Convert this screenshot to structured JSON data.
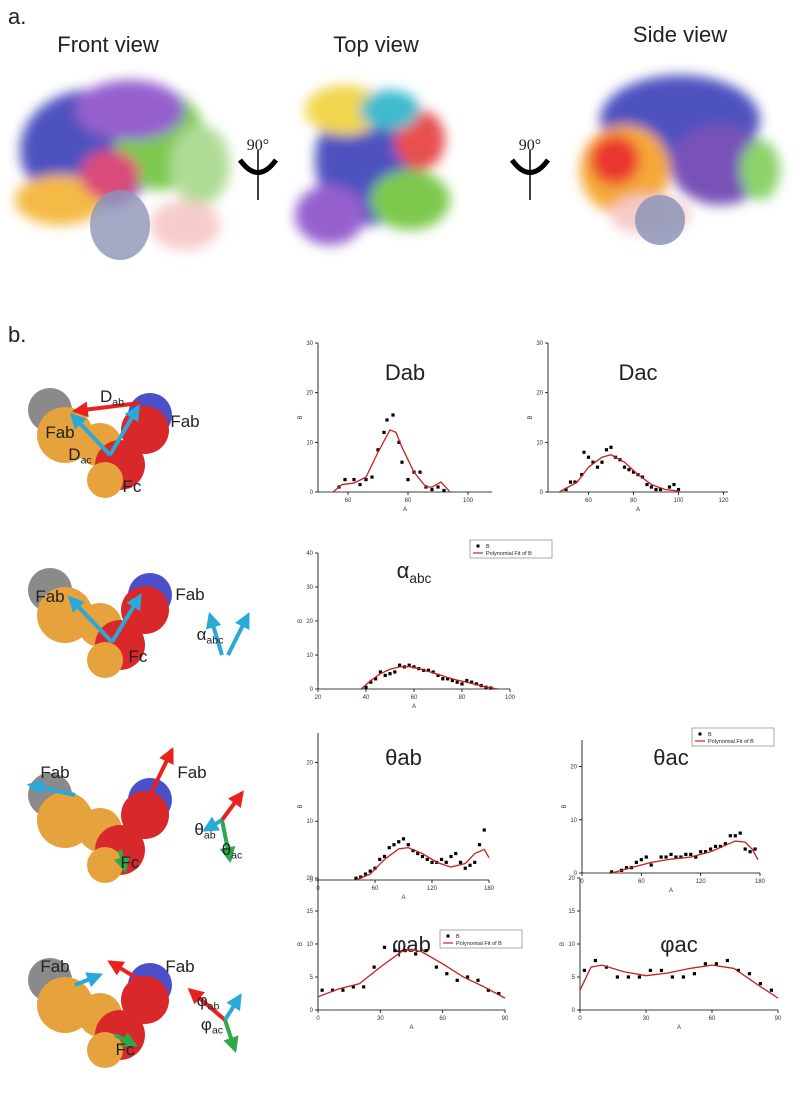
{
  "panel_labels": [
    "a.",
    "b."
  ],
  "views": [
    "Front view",
    "Top view",
    "Side view"
  ],
  "rotation": [
    "90°",
    "90°"
  ],
  "diagrams": [
    {
      "labels": [
        {
          "text": "Fab"
        },
        {
          "text": "Fab"
        },
        {
          "text": "D",
          "sub": "ab"
        },
        {
          "text": "D",
          "sub": "ac"
        },
        {
          "text": "Fc"
        }
      ]
    },
    {
      "labels": [
        {
          "text": "Fab"
        },
        {
          "text": "Fab"
        },
        {
          "text": "Fc"
        },
        {
          "text": "α",
          "sub": "abc"
        }
      ]
    },
    {
      "labels": [
        {
          "text": "Fab"
        },
        {
          "text": "Fab"
        },
        {
          "text": "Fc"
        },
        {
          "text": "θ",
          "sub": "ab"
        },
        {
          "text": "θ",
          "sub": "ac"
        }
      ]
    },
    {
      "labels": [
        {
          "text": "Fab"
        },
        {
          "text": "Fab"
        },
        {
          "text": "Fc"
        },
        {
          "text": "φ",
          "sub": "ab"
        },
        {
          "text": "φ",
          "sub": "ac"
        }
      ]
    }
  ],
  "chart_data": [
    {
      "type": "scatter",
      "title": "Dab",
      "x_label": "A",
      "y_label": "B",
      "xlim": [
        50,
        108
      ],
      "xticks": [
        60,
        80,
        100
      ],
      "ylim": [
        0,
        30
      ],
      "yticks": [
        0,
        10,
        20,
        30
      ],
      "legend": false,
      "series": [
        {
          "color": "#000000",
          "x": [
            57,
            59,
            62,
            64,
            66,
            68,
            70,
            72,
            73,
            75,
            77,
            78,
            80,
            82,
            84,
            86,
            88,
            90,
            92
          ],
          "values": [
            1,
            2.5,
            2.5,
            1.5,
            2.5,
            3,
            8.5,
            12,
            14.5,
            15.5,
            10,
            6,
            2.5,
            4,
            4,
            1,
            0.5,
            1,
            0.3
          ]
        },
        {
          "type": "line",
          "color": "#c8201e",
          "x": [
            55,
            58,
            62,
            66,
            70,
            74,
            76,
            78,
            82,
            86,
            88,
            91,
            94
          ],
          "values": [
            0,
            1.5,
            1.8,
            3,
            8,
            12.5,
            12,
            9,
            4,
            1,
            1,
            2,
            0
          ]
        }
      ]
    },
    {
      "type": "scatter",
      "title": "Dac",
      "x_label": "A",
      "y_label": "B",
      "xlim": [
        42,
        122
      ],
      "xticks": [
        60,
        80,
        100,
        120
      ],
      "ylim": [
        0,
        30
      ],
      "yticks": [
        0,
        10,
        20,
        30
      ],
      "legend": false,
      "series": [
        {
          "color": "#000000",
          "x": [
            50,
            52,
            54,
            57,
            58,
            60,
            62,
            64,
            66,
            68,
            70,
            72,
            74,
            76,
            78,
            80,
            82,
            84,
            86,
            88,
            90,
            92,
            96,
            98,
            100
          ],
          "values": [
            0.5,
            2,
            2,
            3.5,
            8,
            7,
            6,
            5,
            6,
            8.5,
            9,
            7,
            6.5,
            5,
            4.5,
            4,
            3.5,
            3,
            1.5,
            1,
            0.5,
            0.5,
            1,
            1.5,
            0.5
          ]
        },
        {
          "type": "line",
          "color": "#c8201e",
          "x": [
            47,
            55,
            60,
            66,
            70,
            76,
            82,
            88,
            94,
            100
          ],
          "values": [
            0,
            2,
            5,
            7,
            7.5,
            6,
            3.5,
            1.5,
            0.5,
            0.2
          ]
        }
      ]
    },
    {
      "type": "scatter",
      "title": "α",
      "title_sub": "abc",
      "x_label": "A",
      "y_label": "B",
      "xlim": [
        20,
        100
      ],
      "xticks": [
        20,
        40,
        60,
        80,
        100
      ],
      "ylim": [
        0,
        40
      ],
      "yticks": [
        0,
        10,
        20,
        30,
        40
      ],
      "legend": true,
      "series": [
        {
          "name": "B",
          "color": "#000000",
          "x": [
            40,
            42,
            44,
            46,
            48,
            50,
            52,
            54,
            56,
            58,
            60,
            62,
            64,
            66,
            68,
            70,
            72,
            74,
            76,
            78,
            80,
            82,
            84,
            86,
            88,
            90,
            92
          ],
          "values": [
            0.5,
            2,
            3,
            5,
            4,
            4.5,
            5,
            7,
            6.5,
            7,
            6.5,
            6,
            5.5,
            5.5,
            5,
            4,
            3,
            3,
            2.5,
            2,
            1.5,
            2.5,
            2,
            1.5,
            1,
            0.5,
            0.3
          ]
        },
        {
          "name": "Polynomial Fit of B",
          "type": "line",
          "color": "#c8201e",
          "x": [
            38,
            42,
            46,
            50,
            54,
            58,
            62,
            66,
            70,
            74,
            78,
            82,
            86,
            90,
            95
          ],
          "values": [
            0,
            2.5,
            4.5,
            5.8,
            6.5,
            6.6,
            6,
            5.2,
            4.3,
            3.4,
            2.6,
            2,
            1.3,
            0.6,
            0
          ]
        }
      ]
    },
    {
      "type": "scatter",
      "title": "θab",
      "x_label": "A",
      "y_label": "B",
      "xlim": [
        0,
        180
      ],
      "xticks": [
        0,
        60,
        120,
        180
      ],
      "ylim": [
        0,
        25
      ],
      "yticks": [
        0,
        10,
        20
      ],
      "legend": false,
      "series": [
        {
          "color": "#000000",
          "x": [
            40,
            45,
            50,
            55,
            60,
            65,
            70,
            75,
            80,
            85,
            90,
            95,
            100,
            105,
            110,
            115,
            120,
            125,
            130,
            135,
            140,
            145,
            150,
            155,
            160,
            165,
            170,
            175
          ],
          "values": [
            0.3,
            0.5,
            1,
            1.5,
            2,
            3.5,
            4,
            5.5,
            6,
            6.5,
            7,
            6,
            5,
            4.5,
            4,
            3.5,
            3,
            3,
            3.5,
            3,
            4,
            4.5,
            3,
            2,
            2.5,
            3,
            6,
            8.5
          ]
        },
        {
          "type": "line",
          "color": "#c8201e",
          "x": [
            40,
            55,
            70,
            85,
            95,
            110,
            125,
            140,
            155,
            165,
            175,
            180
          ],
          "values": [
            0,
            1,
            3.5,
            5.3,
            5.5,
            4.5,
            3,
            2.2,
            2.8,
            4.5,
            5.2,
            3.8
          ]
        }
      ]
    },
    {
      "type": "scatter",
      "title": "θac",
      "x_label": "A",
      "y_label": "B",
      "xlim": [
        0,
        180
      ],
      "xticks": [
        0,
        60,
        120,
        180
      ],
      "ylim": [
        0,
        25
      ],
      "yticks": [
        0,
        10,
        20
      ],
      "legend": true,
      "series": [
        {
          "name": "B",
          "color": "#000000",
          "x": [
            30,
            40,
            45,
            50,
            55,
            60,
            65,
            70,
            80,
            85,
            90,
            95,
            100,
            105,
            110,
            115,
            120,
            125,
            130,
            135,
            140,
            145,
            150,
            155,
            160,
            165,
            170,
            175
          ],
          "values": [
            0.2,
            0.5,
            1,
            1,
            2,
            2.5,
            3,
            1.5,
            3,
            3,
            3.5,
            3,
            3,
            3.5,
            3.5,
            3,
            4,
            4,
            4.5,
            5,
            5,
            5.5,
            7,
            7,
            7.5,
            4.5,
            4,
            4.5
          ]
        },
        {
          "name": "Polynomial Fit of B",
          "type": "line",
          "color": "#c8201e",
          "x": [
            30,
            50,
            70,
            90,
            110,
            130,
            145,
            155,
            165,
            172,
            178
          ],
          "values": [
            0,
            1,
            2,
            2.6,
            3,
            4,
            5.2,
            6,
            5.8,
            4.5,
            2.5
          ]
        }
      ]
    },
    {
      "type": "scatter",
      "title": "φab",
      "x_label": "A",
      "y_label": "B",
      "xlim": [
        0,
        90
      ],
      "xticks": [
        0,
        30,
        60,
        90
      ],
      "ylim": [
        0,
        20
      ],
      "yticks": [
        0,
        5,
        10,
        15,
        20
      ],
      "legend": true,
      "series": [
        {
          "name": "B",
          "color": "#000000",
          "x": [
            2,
            7,
            12,
            17,
            22,
            27,
            32,
            37,
            42,
            47,
            52,
            57,
            62,
            67,
            72,
            77,
            82,
            87
          ],
          "values": [
            3,
            3,
            3,
            3.5,
            3.5,
            6.5,
            9.5,
            9,
            9,
            8.5,
            9,
            6.5,
            5.5,
            4.5,
            5,
            4.5,
            3,
            2.5
          ]
        },
        {
          "name": "Polynomial Fit of B",
          "type": "line",
          "color": "#c8201e",
          "x": [
            0,
            10,
            20,
            30,
            40,
            45,
            50,
            60,
            70,
            80,
            90
          ],
          "values": [
            2,
            3.2,
            4,
            6.5,
            8.8,
            9.2,
            8.8,
            7,
            5,
            3.5,
            1.8
          ]
        }
      ]
    },
    {
      "type": "scatter",
      "title": "φac",
      "x_label": "A",
      "y_label": "B",
      "xlim": [
        0,
        90
      ],
      "xticks": [
        0,
        30,
        60,
        90
      ],
      "ylim": [
        0,
        20
      ],
      "yticks": [
        0,
        5,
        10,
        15,
        20
      ],
      "legend": false,
      "series": [
        {
          "color": "#000000",
          "x": [
            2,
            7,
            12,
            17,
            22,
            27,
            32,
            37,
            42,
            47,
            52,
            57,
            62,
            67,
            72,
            77,
            82,
            87
          ],
          "values": [
            6,
            7.5,
            6.5,
            5,
            5,
            5,
            6,
            6,
            5,
            5,
            5.5,
            7,
            7,
            7.5,
            6,
            5.5,
            4,
            3
          ]
        },
        {
          "type": "line",
          "color": "#c8201e",
          "x": [
            0,
            5,
            10,
            20,
            30,
            40,
            50,
            60,
            70,
            80,
            90
          ],
          "values": [
            3,
            6.5,
            6.8,
            5.8,
            5.2,
            5.6,
            6.3,
            6.8,
            6.3,
            4,
            1.8
          ]
        }
      ]
    }
  ]
}
